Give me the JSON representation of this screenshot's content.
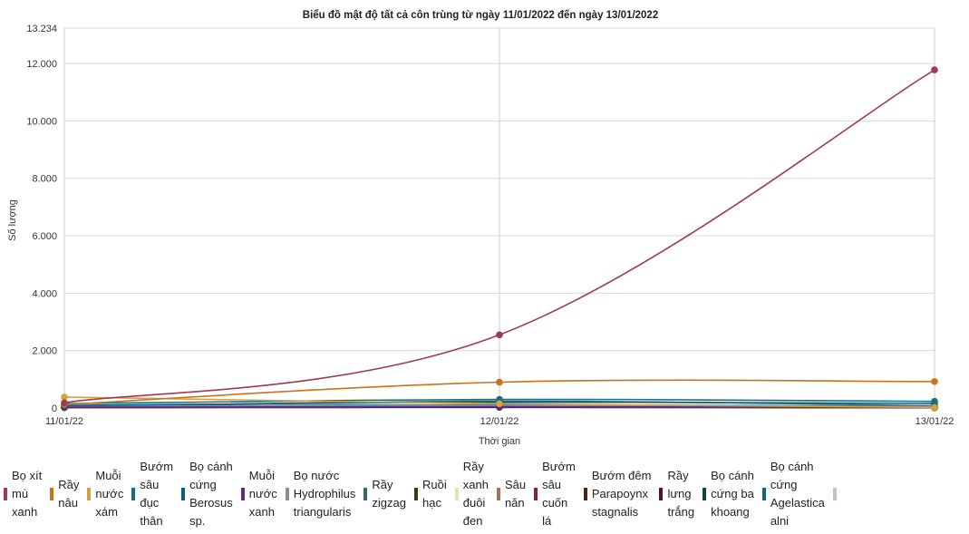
{
  "chart_data": {
    "type": "line",
    "title": "Biểu đồ mật độ tất cả côn trùng từ ngày 11/01/2022 đến ngày 13/01/2022",
    "xlabel": "Thời gian",
    "ylabel": "Số lượng",
    "categories": [
      "11/01/22",
      "12/01/22",
      "13/01/22"
    ],
    "ylim": [
      0,
      13234
    ],
    "yticks": [
      {
        "value": 0,
        "label": "0"
      },
      {
        "value": 2000,
        "label": "2.000"
      },
      {
        "value": 4000,
        "label": "4.000"
      },
      {
        "value": 6000,
        "label": "6.000"
      },
      {
        "value": 8000,
        "label": "8.000"
      },
      {
        "value": 10000,
        "label": "10.000"
      },
      {
        "value": 12000,
        "label": "12.000"
      },
      {
        "value": 13234,
        "label": "13.234"
      }
    ],
    "grid": true,
    "legend_position": "bottom",
    "series": [
      {
        "name": "Bọ xít mù xanh",
        "lines": [
          "Bọ xít",
          "mù",
          "xanh"
        ],
        "color": "#9e3a56",
        "values": [
          180,
          2550,
          11780
        ]
      },
      {
        "name": "Rầy nâu",
        "lines": [
          "Rầy",
          "nâu"
        ],
        "color": "#c8731e",
        "values": [
          120,
          900,
          920
        ]
      },
      {
        "name": "Muỗi nước xám",
        "lines": [
          "Muỗi",
          "nước",
          "xám"
        ],
        "color": "#d6a13d",
        "values": [
          380,
          150,
          20
        ]
      },
      {
        "name": "Bướm sâu đục thân",
        "lines": [
          "Bướm",
          "sâu",
          "đục",
          "thân"
        ],
        "color": "#17707c",
        "values": [
          150,
          300,
          230
        ]
      },
      {
        "name": "Bọ cánh cứng Berosus sp.",
        "lines": [
          "Bọ cánh",
          "cứng",
          "Berosus",
          "sp."
        ],
        "color": "#0c5d82",
        "values": [
          90,
          200,
          160
        ]
      },
      {
        "name": "Muỗi nước xanh",
        "lines": [
          "Muỗi",
          "nước",
          "xanh"
        ],
        "color": "#5a2a8c",
        "values": [
          30,
          40,
          20
        ]
      },
      {
        "name": "Bọ nước Hydrophilus triangularis",
        "lines": [
          "Bọ nước",
          "Hydrophilus",
          "triangularis"
        ],
        "color": "#8c8c8c",
        "values": [
          60,
          90,
          50
        ]
      },
      {
        "name": "Rầy zigzag",
        "lines": [
          "Rầy",
          "zigzag"
        ],
        "color": "#3d6470",
        "values": [
          40,
          240,
          80
        ]
      },
      {
        "name": "Ruồi hạc",
        "lines": [
          "Ruồi",
          "hạc"
        ],
        "color": "#3f3a10",
        "values": [
          20,
          30,
          15
        ]
      },
      {
        "name": "Rầy xanh đuôi đen",
        "lines": [
          "Rầy",
          "xanh",
          "đuôi",
          "đen"
        ],
        "color": "#e6dfb8",
        "values": [
          50,
          70,
          40
        ]
      },
      {
        "name": "Sâu năn",
        "lines": [
          "Sâu",
          "năn"
        ],
        "color": "#a37458",
        "values": [
          30,
          50,
          25
        ]
      },
      {
        "name": "Bướm sâu cuốn lá",
        "lines": [
          "Bướm",
          "sâu",
          "cuốn",
          "lá"
        ],
        "color": "#7a2a2a",
        "values": [
          25,
          40,
          20
        ]
      },
      {
        "name": "Bướm đêm Parapoynx stagnalis",
        "lines": [
          "Bướm đêm",
          "Parapoynx",
          "stagnalis"
        ],
        "color": "#4a2410",
        "values": [
          20,
          35,
          15
        ]
      },
      {
        "name": "Rầy lưng trắng",
        "lines": [
          "Rầy",
          "lưng",
          "trắng"
        ],
        "color": "#5a1020",
        "values": [
          15,
          25,
          10
        ]
      },
      {
        "name": "Bọ cánh cứng ba khoang",
        "lines": [
          "Bọ cánh",
          "cứng ba",
          "khoang"
        ],
        "color": "#0f4a2a",
        "values": [
          20,
          30,
          15
        ]
      },
      {
        "name": "Bọ cánh cứng Agelastica alni",
        "lines": [
          "Bọ cánh",
          "cứng",
          "Agelastica",
          "alni"
        ],
        "color": "#0d6a6e",
        "values": [
          60,
          110,
          60
        ]
      },
      {
        "name": "",
        "lines": [],
        "color": "#b9c6c9",
        "values": [
          30,
          45,
          25
        ]
      }
    ]
  }
}
